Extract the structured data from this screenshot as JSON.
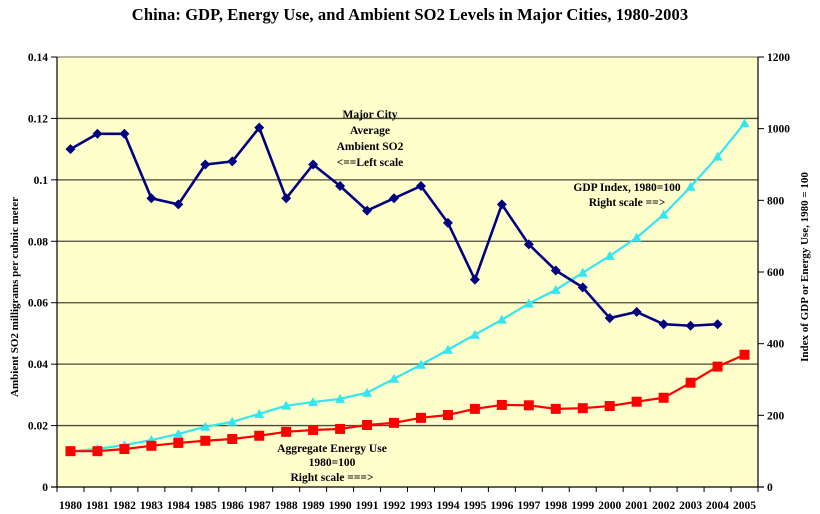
{
  "chart_data": {
    "type": "line",
    "title": "China: GDP, Energy Use, and Ambient SO2 Levels in Major Cities, 1980-2003",
    "xlabel": "",
    "ylabel_left": "Ambient SO2 milligrams per cubnic meter",
    "ylabel_right": "Index of GDP or Energy Use, 1980 = 100",
    "ylim_left": [
      0,
      0.14
    ],
    "ylim_right": [
      0,
      1200
    ],
    "yticks_left": [
      "0",
      "0.02",
      "0.04",
      "0.06",
      "0.08",
      "0.1",
      "0.12",
      "0.14"
    ],
    "yticks_right": [
      "0",
      "200",
      "400",
      "600",
      "800",
      "1000",
      "1200"
    ],
    "grid": true,
    "categories": [
      "1980",
      "1981",
      "1982",
      "1983",
      "1984",
      "1985",
      "1986",
      "1987",
      "1988",
      "1989",
      "1990",
      "1991",
      "1992",
      "1993",
      "1994",
      "1995",
      "1996",
      "1997",
      "1998",
      "1999",
      "2000",
      "2001",
      "2002",
      "2003",
      "2004",
      "2005"
    ],
    "series": [
      {
        "name": "Major City Average Ambient SO2",
        "axis": "left",
        "color": "#000080",
        "marker": "diamond",
        "values": [
          0.11,
          0.115,
          0.115,
          0.094,
          0.092,
          0.105,
          0.106,
          0.117,
          0.094,
          0.105,
          0.098,
          0.09,
          0.094,
          0.098,
          0.086,
          0.0675,
          0.092,
          0.079,
          0.0705,
          0.065,
          0.055,
          0.057,
          0.053,
          0.0525,
          0.053,
          null
        ]
      },
      {
        "name": "GDP Index, 1980=100",
        "axis": "right",
        "color": "#33E6F0",
        "marker": "triangle",
        "values": [
          100,
          106,
          117,
          131,
          148,
          168,
          182,
          204,
          227,
          237,
          246,
          263,
          302,
          341,
          383,
          425,
          467,
          512,
          550,
          598,
          645,
          696,
          760,
          838,
          922,
          1015
        ]
      },
      {
        "name": "Aggregate Energy Use 1980=100",
        "axis": "right",
        "color": "#FF0000",
        "marker": "square",
        "values": [
          100,
          100,
          106,
          115,
          123,
          129,
          134,
          143,
          154,
          159,
          162,
          173,
          179,
          193,
          201,
          218,
          229,
          228,
          218,
          220,
          226,
          238,
          249,
          291,
          336,
          369
        ]
      }
    ],
    "annotations": [
      {
        "lines": [
          "Major City",
          "Average",
          "Ambient SO2",
          "<==Left scale"
        ]
      },
      {
        "lines": [
          "GDP Index, 1980=100",
          "Right scale ==>"
        ]
      },
      {
        "lines": [
          "Aggregate Energy Use",
          "1980=100",
          "Right scale ===>"
        ]
      }
    ],
    "plot_background": "#FFFFCC"
  }
}
